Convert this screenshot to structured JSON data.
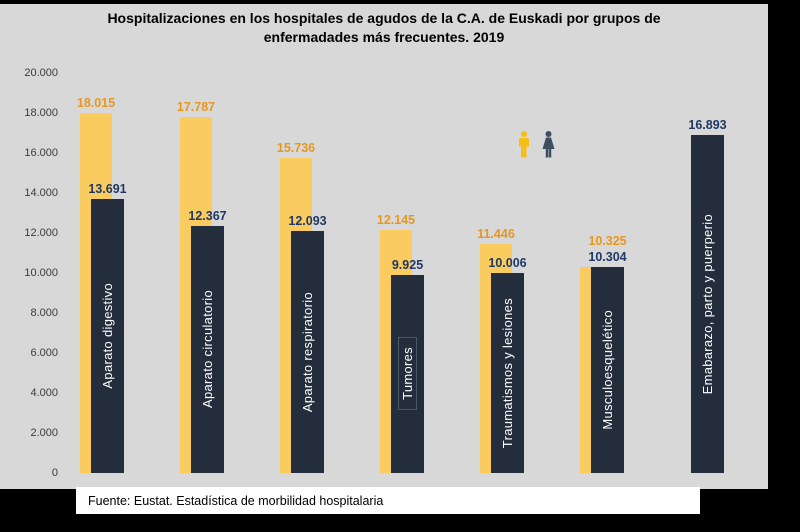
{
  "title": {
    "lines": [
      "Hospitalizaciones en los hospitales de agudos de la C.A. de Euskadi por grupos de",
      "enfermadades más frecuentes. 2019"
    ]
  },
  "footer": {
    "source_text": "Fuente: Eustat. Estadística de morbilidad hospitalaria"
  },
  "legend": {
    "male_icon_color": "#f6be15",
    "female_icon_color": "#3e4d5f"
  },
  "colors": {
    "background": "#d8d8d8",
    "frame": "#000000",
    "bar_men": "#facc5f",
    "bar_women": "#232d3b",
    "label_men": "#e8971e",
    "label_women": "#1f3864",
    "axis_text": "#3a3a3a",
    "category_text": "#ffffff",
    "boxed_label_border": "#4d5866"
  },
  "chart_data": {
    "type": "bar",
    "title": "Hospitalizaciones en los hospitales de agudos de la C.A. de Euskadi por grupos de enfermadades más frecuentes. 2019",
    "categories": [
      "Aparato digestivo",
      "Aparato circulatorio",
      "Aparato respiratorio",
      "Tumores",
      "Traumatismos y lesiones",
      "Musculoesquelético",
      "Emabarazo, parto y puerperio"
    ],
    "series": [
      {
        "name": "Hombres",
        "color": "#facc5f",
        "label_color": "#e8971e",
        "values": [
          18015,
          17787,
          15736,
          12145,
          11446,
          10325,
          null
        ],
        "labels": [
          "18.015",
          "17.787",
          "15.736",
          "12.145",
          "11.446",
          "10.325",
          null
        ]
      },
      {
        "name": "Mujeres",
        "color": "#232d3b",
        "label_color": "#1f3864",
        "values": [
          13691,
          12367,
          12093,
          9925,
          10006,
          10304,
          16893
        ],
        "labels": [
          "13.691",
          "12.367",
          "12.093",
          "9.925",
          "10.006",
          "10.304",
          "16.893"
        ]
      }
    ],
    "xlabel": "",
    "ylabel": "",
    "ylim": [
      0,
      20000
    ],
    "ytick_step": 2000,
    "yticks": [
      "20.000",
      "18.000",
      "16.000",
      "14.000",
      "12.000",
      "10.000",
      "8.000",
      "6.000",
      "4.000",
      "2.000",
      "0"
    ],
    "grid": false,
    "legend_position": "top-right",
    "legend_style": "male-female pictograms, no text",
    "boxed_category_index": 3,
    "source": "Fuente: Eustat. Estadística de morbilidad hospitalaria"
  }
}
